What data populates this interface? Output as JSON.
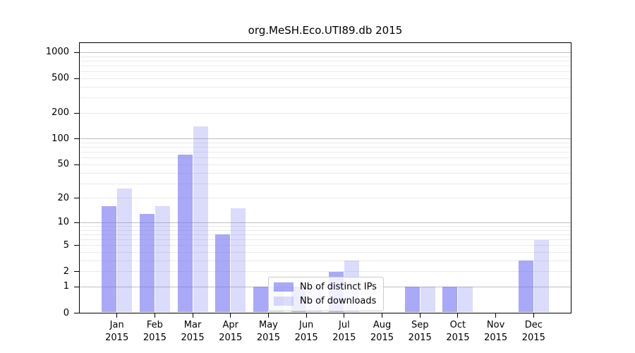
{
  "title": "org.MeSH.Eco.UTI89.db 2015",
  "legend": {
    "items": [
      {
        "label": "Nb of distinct IPs",
        "swatch": "dark"
      },
      {
        "label": "Nb of downloads",
        "swatch": "light"
      }
    ]
  },
  "colors": {
    "bar_base_rgb": "112,112,242",
    "bar_dark_alpha": 0.6,
    "bar_light_alpha": 0.25,
    "grid_major": "#c0c0c0",
    "grid_minor": "#eaeaea",
    "axis": "#000000",
    "legend_border": "#cccccc",
    "text": "#000000"
  },
  "chart_data": {
    "type": "bar",
    "title": "org.MeSH.Eco.UTI89.db 2015",
    "categories": [
      "Jan",
      "Feb",
      "Mar",
      "Apr",
      "May",
      "Jun",
      "Jul",
      "Aug",
      "Sep",
      "Oct",
      "Nov",
      "Dec"
    ],
    "category_year": "2015",
    "series": [
      {
        "name": "Nb of distinct IPs",
        "values": [
          16,
          13,
          66,
          7,
          1,
          1,
          2,
          0,
          1,
          1,
          0,
          3
        ]
      },
      {
        "name": "Nb of downloads",
        "values": [
          26,
          16,
          140,
          15,
          1,
          1,
          3,
          0,
          1,
          1,
          0,
          6
        ]
      }
    ],
    "y_scale": "log10(1+v)",
    "y_ticks": [
      0,
      1,
      2,
      5,
      10,
      20,
      50,
      100,
      200,
      500,
      1000
    ],
    "y_major_gridlines": [
      1,
      10,
      100,
      1000
    ],
    "y_minor_ticks": [
      3,
      4,
      6,
      7,
      8,
      9,
      30,
      40,
      60,
      70,
      80,
      90,
      300,
      400,
      600,
      700,
      800,
      900
    ],
    "ylim": [
      0,
      1300
    ],
    "grid": true,
    "legend_position": "lower-center-inside",
    "xlabel": "",
    "ylabel": ""
  }
}
